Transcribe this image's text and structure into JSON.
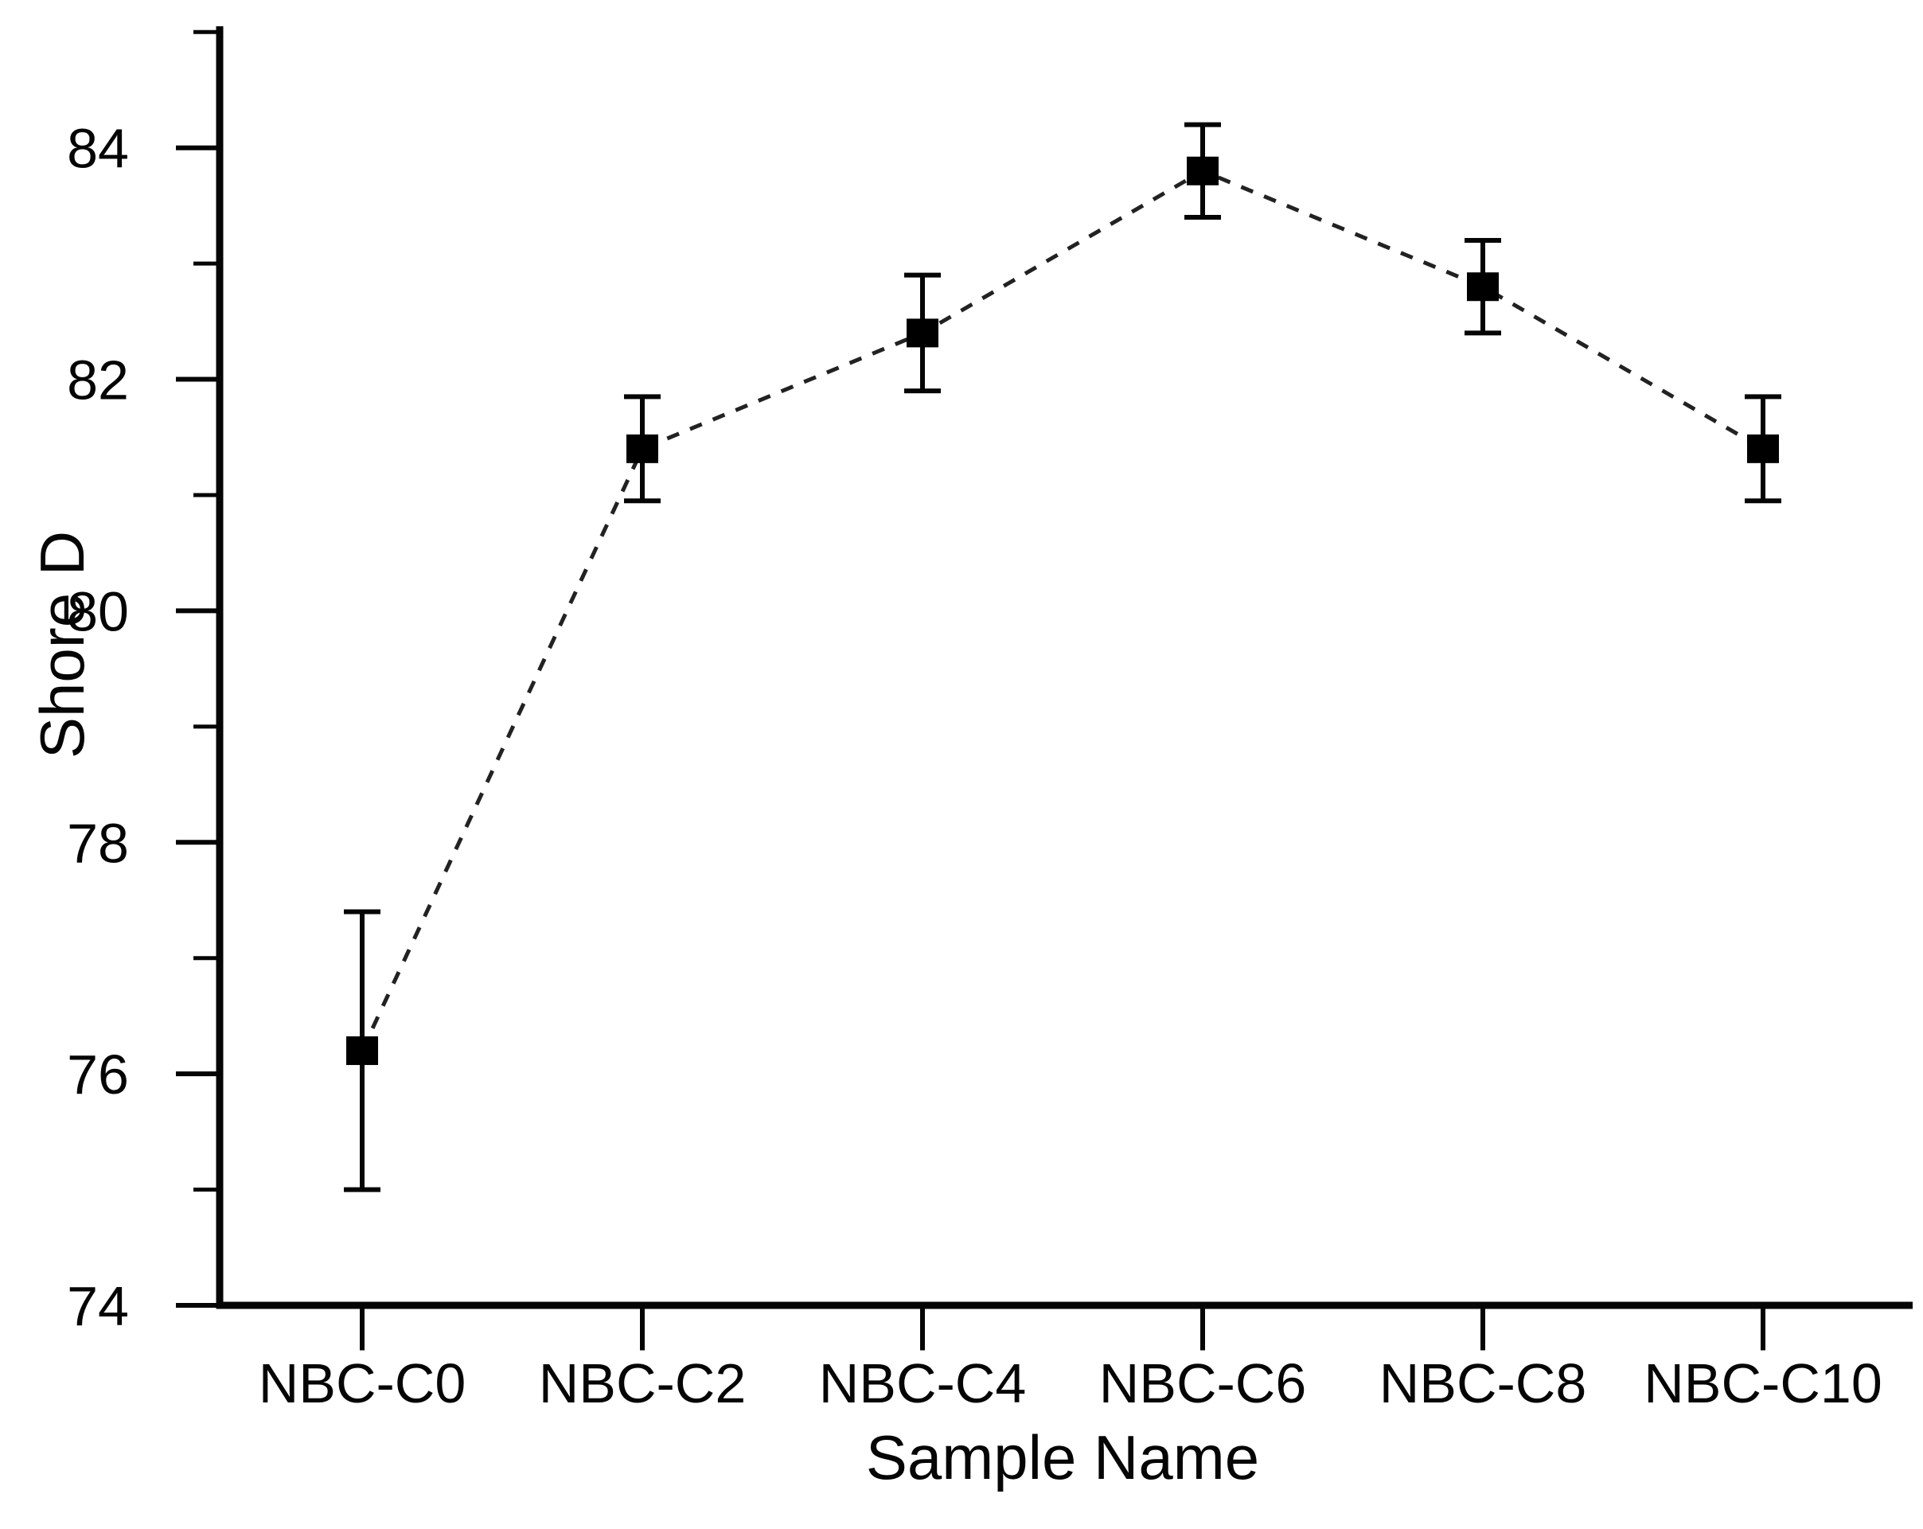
{
  "figure": {
    "background": "#ffffff"
  },
  "chart_data": {
    "type": "line",
    "title": "",
    "xlabel": "Sample Name",
    "ylabel": "Shore D",
    "categories": [
      "NBC-C0",
      "NBC-C2",
      "NBC-C4",
      "NBC-C6",
      "NBC-C8",
      "NBC-C10"
    ],
    "series": [
      {
        "name": "Shore D",
        "values": [
          76.2,
          81.4,
          82.4,
          83.8,
          82.8,
          81.4
        ],
        "errors": [
          1.2,
          0.45,
          0.5,
          0.4,
          0.4,
          0.45
        ]
      }
    ],
    "ylim": [
      74,
      85.05
    ],
    "y_major_ticks": [
      74,
      76,
      78,
      80,
      82,
      84
    ],
    "y_minor_ticks": [
      75,
      77,
      79,
      81,
      83,
      85
    ],
    "grid": false,
    "legend": "none",
    "line_style": "dashed",
    "marker_style": "filled-square",
    "error_bars": "vertical-with-caps",
    "colors": {
      "axis": "#050505",
      "text": "#050505",
      "line": "#222222",
      "marker": "#000000"
    }
  }
}
